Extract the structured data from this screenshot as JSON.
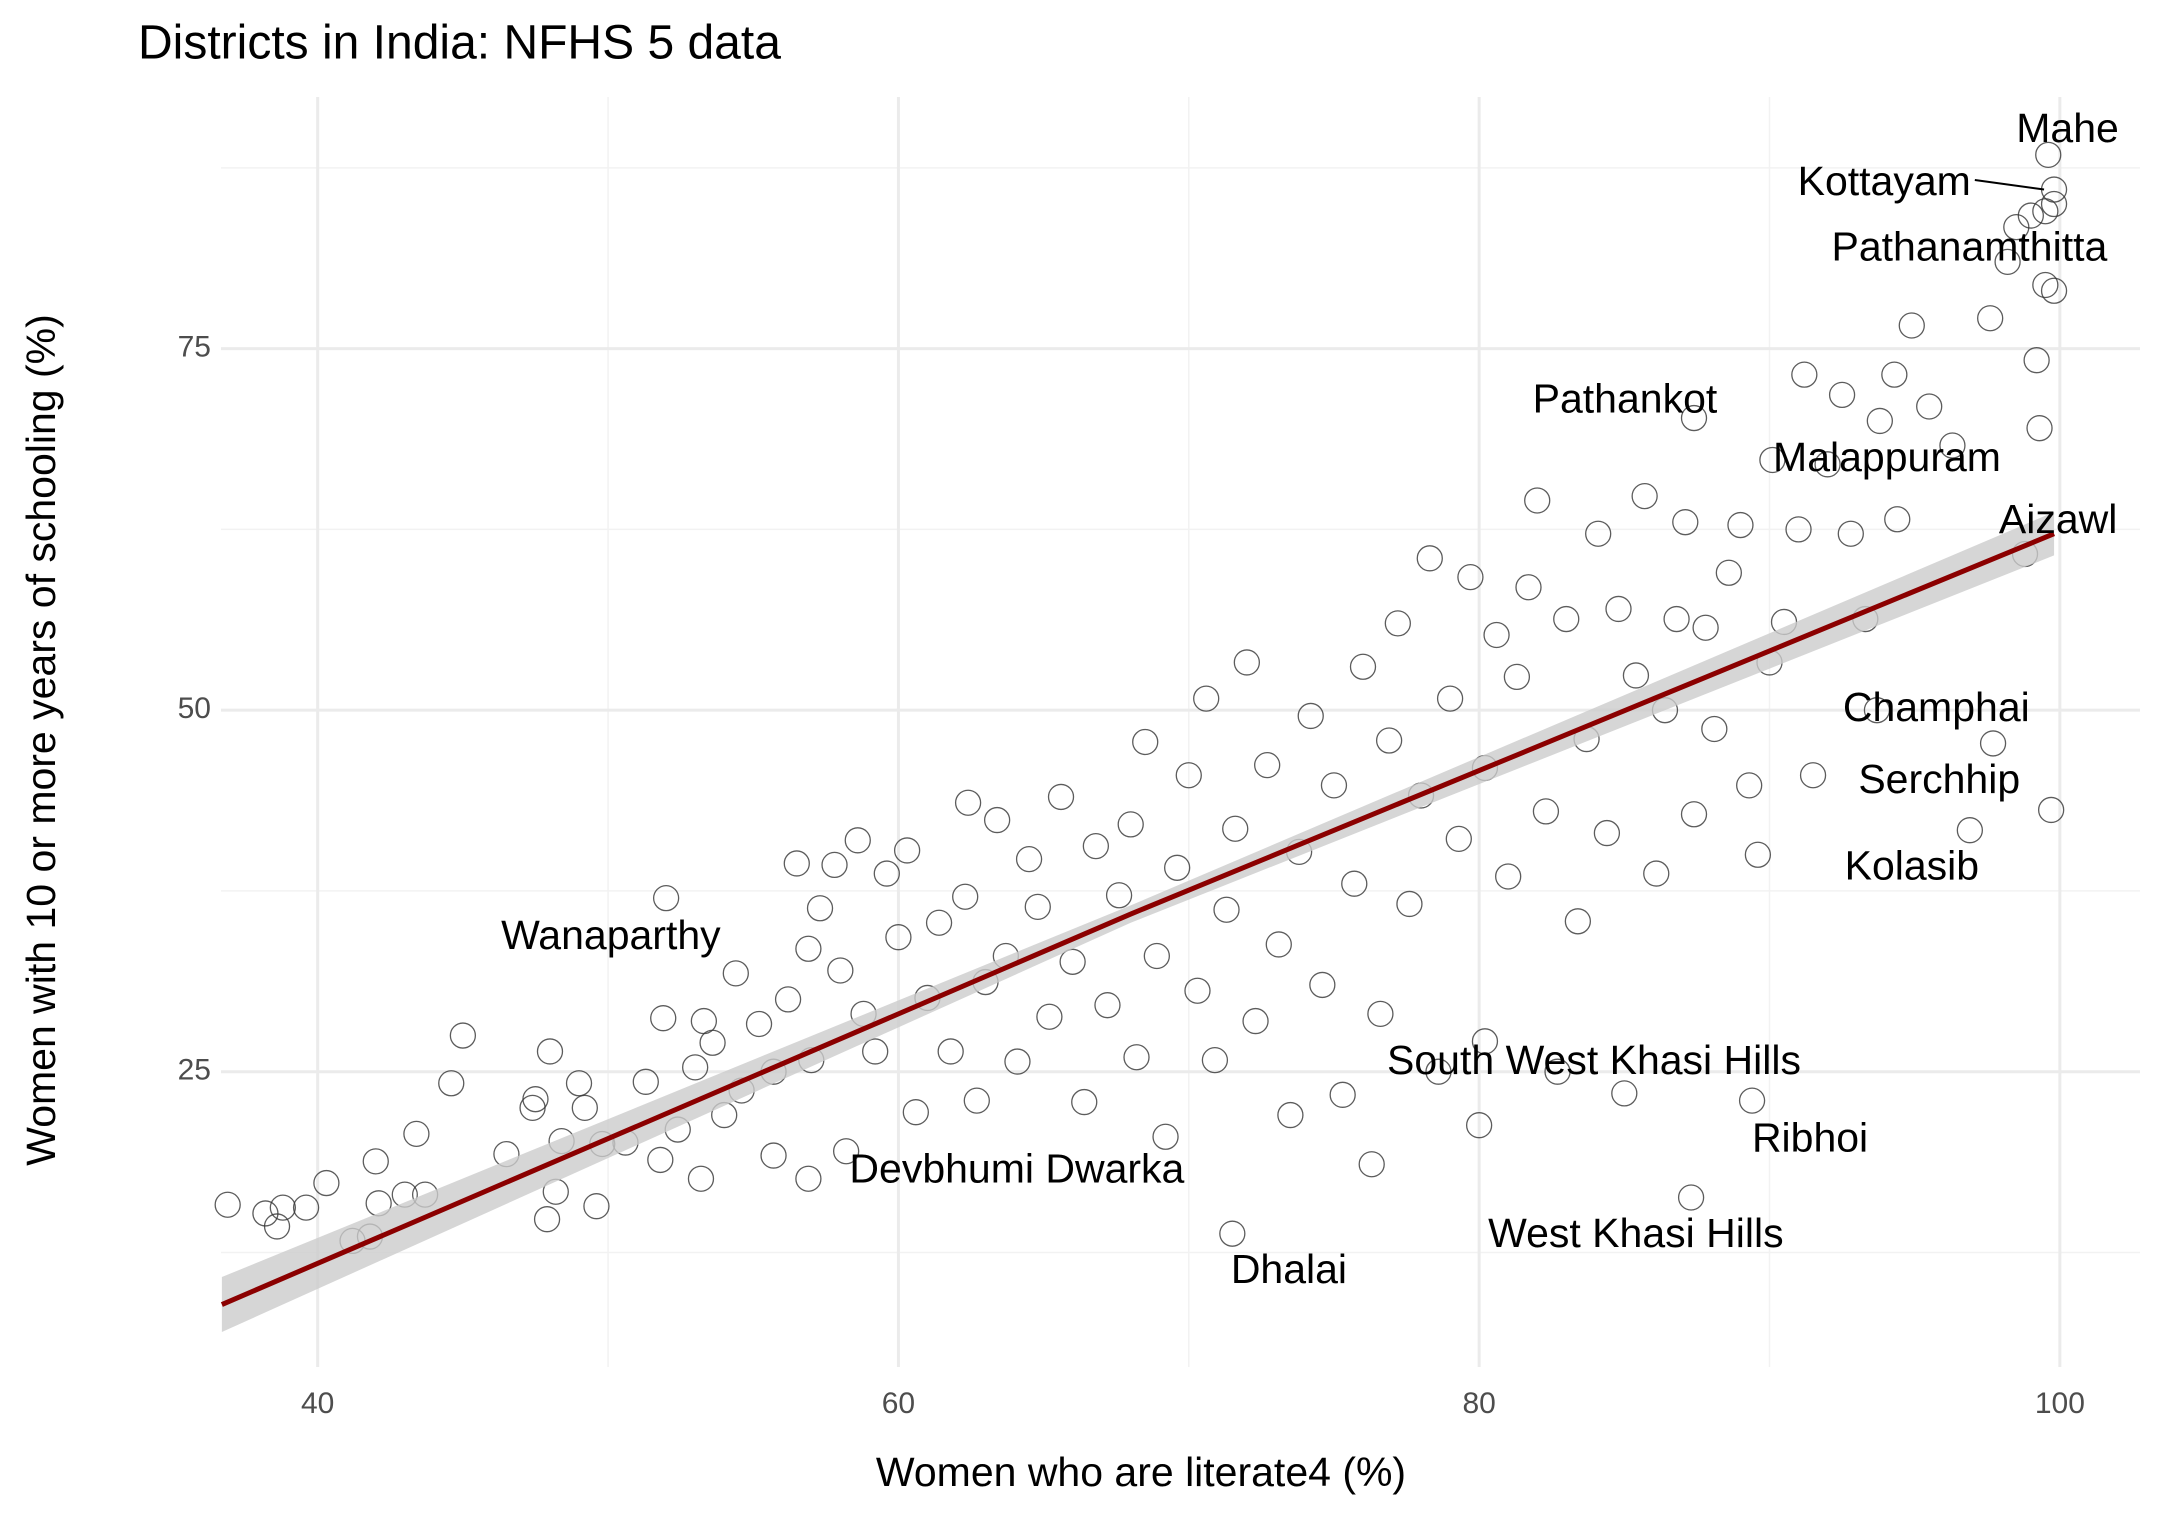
{
  "chart_data": {
    "type": "scatter",
    "title": "Districts in India: NFHS 5 data",
    "x_label": "Women who are literate4 (%)",
    "y_label": "Women with 10 or more years of schooling (%)",
    "xlim": [
      36.67,
      102.76
    ],
    "ylim": [
      4.58,
      92.4
    ],
    "xticks": [
      40,
      60,
      80,
      100
    ],
    "yticks": [
      25,
      50,
      75
    ],
    "xminor": [
      50,
      70,
      90
    ],
    "yminor": [
      12.5,
      37.5,
      62.5,
      87.5
    ],
    "grid": true,
    "point_color": "#333333",
    "x": [
      36.9,
      38.2,
      38.6,
      38.8,
      39.6,
      40.3,
      41.2,
      41.8,
      42.0,
      42.1,
      43.0,
      43.4,
      43.7,
      44.6,
      45.0,
      46.5,
      47.4,
      47.5,
      47.9,
      48.0,
      48.2,
      48.4,
      49.0,
      49.2,
      49.6,
      49.8,
      50.6,
      51.3,
      51.8,
      51.9,
      52.4,
      53.0,
      53.2,
      53.3,
      53.6,
      54.0,
      54.4,
      54.6,
      55.2,
      55.7,
      55.7,
      56.2,
      56.5,
      56.9,
      57.0,
      57.3,
      57.8,
      58.0,
      58.2,
      58.6,
      58.8,
      59.2,
      59.6,
      60.0,
      60.3,
      60.6,
      61.0,
      61.4,
      61.8,
      62.3,
      62.4,
      62.7,
      63.0,
      63.4,
      63.7,
      64.1,
      64.5,
      64.8,
      65.2,
      65.6,
      66.0,
      66.4,
      66.8,
      67.2,
      67.6,
      68.0,
      68.2,
      68.5,
      68.9,
      69.2,
      69.6,
      70.0,
      70.3,
      70.6,
      70.9,
      71.3,
      71.6,
      72.0,
      72.3,
      72.7,
      73.1,
      73.5,
      73.8,
      74.2,
      74.6,
      75.0,
      75.3,
      75.7,
      76.0,
      76.3,
      76.6,
      76.9,
      77.2,
      77.6,
      78.0,
      78.3,
      78.6,
      79.0,
      79.3,
      79.7,
      80.0,
      80.2,
      80.6,
      81.0,
      81.3,
      81.7,
      82.0,
      82.3,
      82.7,
      83.0,
      83.4,
      83.7,
      84.1,
      84.4,
      84.8,
      85.0,
      85.4,
      85.7,
      86.1,
      86.4,
      86.8,
      87.1,
      87.4,
      87.8,
      88.1,
      88.6,
      89.0,
      89.3,
      89.6,
      90.0,
      90.5,
      91.0,
      91.2,
      91.5,
      92.0,
      92.5,
      92.8,
      93.3,
      93.8,
      94.3,
      94.4,
      94.9,
      95.5,
      96.3,
      97.6,
      98.2,
      98.5,
      99.0,
      99.2,
      99.3,
      99.5,
      99.8,
      99.8,
      99.7
    ],
    "y": [
      15.8,
      15.2,
      14.3,
      15.6,
      15.6,
      17.3,
      13.3,
      13.6,
      18.8,
      15.9,
      16.5,
      20.7,
      16.5,
      24.2,
      27.5,
      19.3,
      22.5,
      23.1,
      14.8,
      26.4,
      16.7,
      20.2,
      24.2,
      22.5,
      15.7,
      20.0,
      20.1,
      24.3,
      18.9,
      28.7,
      21.0,
      25.3,
      17.6,
      28.5,
      27.0,
      22.0,
      31.8,
      23.7,
      28.3,
      25.0,
      19.2,
      30.0,
      39.4,
      33.5,
      25.8,
      36.3,
      39.3,
      32.0,
      19.5,
      41.0,
      29.0,
      26.4,
      38.7,
      34.3,
      40.3,
      22.2,
      30.1,
      35.3,
      26.4,
      37.1,
      43.6,
      23.0,
      31.2,
      42.4,
      33.0,
      25.7,
      39.7,
      36.4,
      28.8,
      44.0,
      32.6,
      22.9,
      40.6,
      29.6,
      37.2,
      42.1,
      26.0,
      47.8,
      33.0,
      20.5,
      39.1,
      45.5,
      30.6,
      50.8,
      25.8,
      36.2,
      41.8,
      53.3,
      28.5,
      46.2,
      33.8,
      22.0,
      40.2,
      49.6,
      31.0,
      44.8,
      23.4,
      38.0,
      53.0,
      18.6,
      29.0,
      47.9,
      56.0,
      36.6,
      44.1,
      60.5,
      25.0,
      50.8,
      41.1,
      59.2,
      21.3,
      46.0,
      55.2,
      38.5,
      52.3,
      58.5,
      64.5,
      43.0,
      25.0,
      56.3,
      35.4,
      48.0,
      62.2,
      41.5,
      57.0,
      23.5,
      52.4,
      64.8,
      38.7,
      50.0,
      56.3,
      63.0,
      42.8,
      55.7,
      48.7,
      59.5,
      62.8,
      44.8,
      40.0,
      53.3,
      56.1,
      62.5,
      73.2,
      45.5,
      67.0,
      71.8,
      62.2,
      56.3,
      70.0,
      73.2,
      63.2,
      76.6,
      71.0,
      68.3,
      77.1,
      81.0,
      83.4,
      84.2,
      74.2,
      69.5,
      79.4,
      79.0,
      85.0,
      43.1
    ],
    "labels": {
      "text": [
        "Mahe",
        "Kottayam",
        "Pathanamthitta",
        "Pathankot",
        "Malappuram",
        "Aizawl",
        "Champhai",
        "Serchhip",
        "Kolasib",
        "Wanaparthy",
        "Devbhumi Dwarka",
        "South West Khasi Hills",
        "Ribhoi",
        "West Khasi Hills",
        "Dhalai"
      ],
      "x": [
        99.6,
        99.8,
        99.5,
        87.4,
        90.1,
        98.8,
        93.7,
        97.7,
        96.9,
        52.0,
        56.9,
        80.2,
        89.4,
        87.3,
        71.5
      ],
      "y": [
        88.4,
        86.0,
        84.5,
        70.2,
        67.3,
        60.8,
        50.0,
        47.7,
        41.7,
        37.0,
        17.6,
        27.1,
        23.0,
        16.3,
        13.8
      ]
    },
    "trend": {
      "x": [
        36.7,
        68,
        99.8
      ],
      "y": [
        8.9,
        35.9,
        62.2
      ],
      "lower": [
        7.0,
        35.3,
        60.7
      ],
      "upper": [
        10.8,
        36.5,
        63.7
      ],
      "color": "#8b0000",
      "band_color": "#cccccc"
    }
  }
}
